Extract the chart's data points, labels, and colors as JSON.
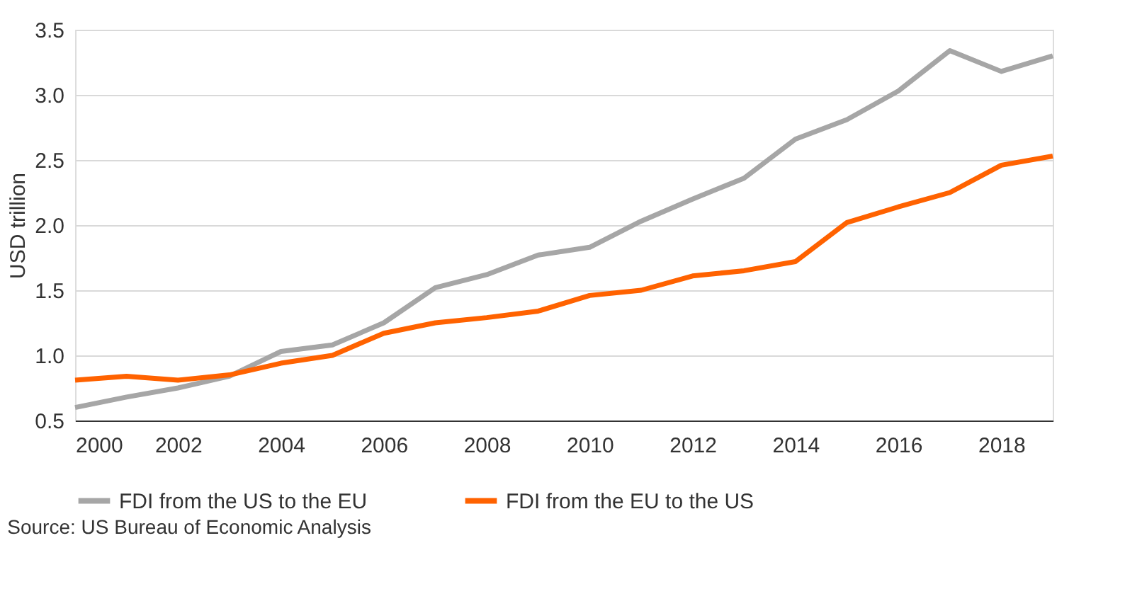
{
  "chart_data": {
    "type": "line",
    "ylabel": "USD trillion",
    "x": [
      2000,
      2001,
      2002,
      2003,
      2004,
      2005,
      2006,
      2007,
      2008,
      2009,
      2010,
      2011,
      2012,
      2013,
      2014,
      2015,
      2016,
      2017,
      2018,
      2019
    ],
    "series": [
      {
        "name": "FDI from the US to the EU",
        "color": "#a6a6a6",
        "values": [
          0.6,
          0.68,
          0.75,
          0.84,
          1.03,
          1.08,
          1.25,
          1.52,
          1.62,
          1.77,
          1.83,
          2.03,
          2.2,
          2.36,
          2.66,
          2.81,
          3.03,
          3.34,
          3.18,
          3.3
        ]
      },
      {
        "name": "FDI from the EU to the US",
        "color": "#ff6200",
        "values": [
          0.81,
          0.84,
          0.81,
          0.85,
          0.94,
          1.0,
          1.17,
          1.25,
          1.29,
          1.34,
          1.46,
          1.5,
          1.61,
          1.65,
          1.72,
          2.02,
          2.14,
          2.25,
          2.46,
          2.53
        ]
      }
    ],
    "xlim": [
      2000,
      2019
    ],
    "xticks": [
      2000,
      2002,
      2004,
      2006,
      2008,
      2010,
      2012,
      2014,
      2016,
      2018
    ],
    "ylim": [
      0.5,
      3.5
    ],
    "yticks": [
      {
        "value": 0.5,
        "label": "0.5"
      },
      {
        "value": 1.0,
        "label": "1.0"
      },
      {
        "value": 1.5,
        "label": "1.5"
      },
      {
        "value": 2.0,
        "label": "2.0"
      },
      {
        "value": 2.5,
        "label": "2.5"
      },
      {
        "value": 3.0,
        "label": "3.0"
      },
      {
        "value": 3.5,
        "label": "3.5"
      }
    ],
    "grid": "y",
    "legend": "bottom",
    "marker": "none",
    "line_style": "solid",
    "annotations": [
      "Source: US Bureau of Economic Analysis"
    ]
  }
}
